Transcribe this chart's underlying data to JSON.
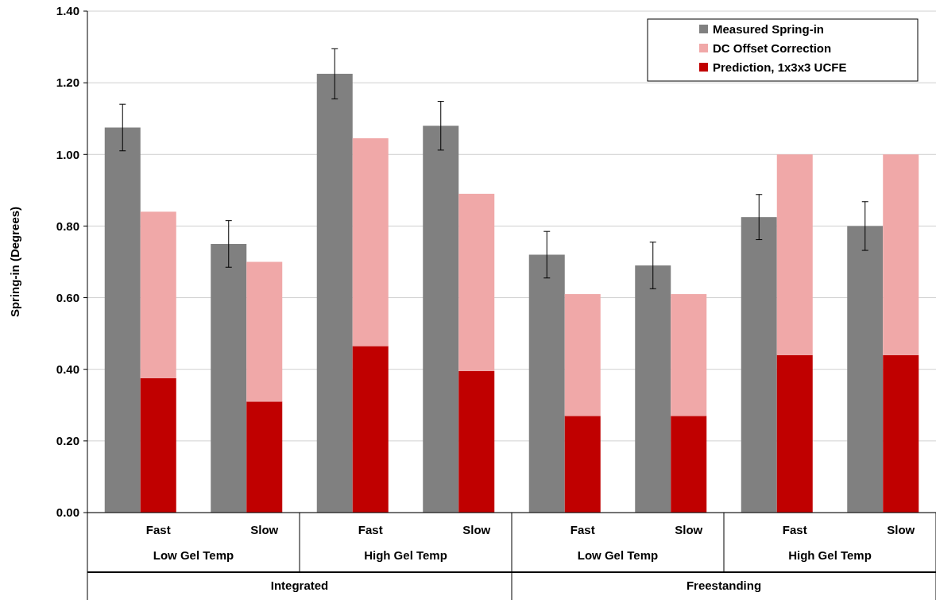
{
  "chart_data": {
    "type": "bar",
    "ylabel": "Spring-in (Degrees)",
    "categories": [
      null,
      "Fast",
      null,
      "Slow",
      null,
      "Fast",
      null,
      "Slow",
      null,
      "Fast",
      null,
      "Slow",
      null,
      "Fast",
      null,
      "Slow"
    ],
    "annotations": [
      "Low Gel Temp",
      "High Gel Temp",
      "Low Gel Temp",
      "High Gel Temp",
      "Integrated",
      "Freestanding"
    ],
    "series": [
      {
        "name": "Measured Spring-in",
        "color": "#808080",
        "values": [
          1.075,
          null,
          0.75,
          null,
          1.225,
          null,
          1.08,
          null,
          0.72,
          null,
          0.69,
          null,
          0.825,
          null,
          0.8,
          null
        ],
        "errors": [
          0.065,
          null,
          0.065,
          null,
          0.07,
          null,
          0.068,
          null,
          0.065,
          null,
          0.065,
          null,
          0.063,
          null,
          0.068,
          null
        ]
      },
      {
        "name": "Prediction, 1x3x3 UCFE",
        "color": "#c00000",
        "values": [
          null,
          0.375,
          null,
          0.31,
          null,
          0.465,
          null,
          0.395,
          null,
          0.27,
          null,
          0.27,
          null,
          0.44,
          null,
          0.44
        ]
      },
      {
        "name": "DC Offset Correction",
        "color": "#f0a8a8",
        "values": [
          null,
          0.465,
          null,
          0.39,
          null,
          0.58,
          null,
          0.495,
          null,
          0.34,
          null,
          0.34,
          null,
          0.56,
          null,
          0.56
        ]
      }
    ],
    "stacked": true,
    "ylim": [
      0,
      1.4
    ],
    "yticks": [
      {
        "value": 0,
        "label": "0.00"
      },
      {
        "value": 0.2,
        "label": "0.20"
      },
      {
        "value": 0.4,
        "label": "0.40"
      },
      {
        "value": 0.6,
        "label": "0.60"
      },
      {
        "value": 0.8,
        "label": "0.80"
      },
      {
        "value": 1,
        "label": "1.00"
      },
      {
        "value": 1.2,
        "label": "1.20"
      },
      {
        "value": 1.4,
        "label": "1.40"
      }
    ],
    "grid": "y",
    "legend": "top right"
  }
}
